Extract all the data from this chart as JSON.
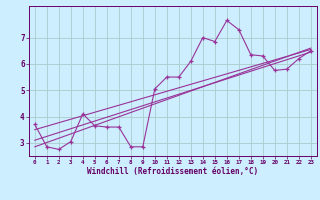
{
  "xlabel": "Windchill (Refroidissement éolien,°C)",
  "bg_color": "#cceeff",
  "grid_color": "#aacccc",
  "line_color": "#993399",
  "x_data": [
    0,
    1,
    2,
    3,
    4,
    5,
    6,
    7,
    8,
    9,
    10,
    11,
    12,
    13,
    14,
    15,
    16,
    17,
    18,
    19,
    20,
    21,
    22,
    23
  ],
  "y_data": [
    3.7,
    2.85,
    2.75,
    3.05,
    4.1,
    3.65,
    3.6,
    3.6,
    2.85,
    2.85,
    5.05,
    5.5,
    5.5,
    6.1,
    7.0,
    6.85,
    7.65,
    7.3,
    6.35,
    6.3,
    5.75,
    5.8,
    6.2,
    6.5
  ],
  "trend1_x": [
    0,
    23
  ],
  "trend1_y": [
    3.1,
    6.45
  ],
  "trend2_x": [
    0,
    23
  ],
  "trend2_y": [
    2.85,
    6.6
  ],
  "trend3_x": [
    0,
    23
  ],
  "trend3_y": [
    3.5,
    6.55
  ],
  "xlim": [
    -0.5,
    23.5
  ],
  "ylim": [
    2.5,
    8.2
  ],
  "yticks": [
    3,
    4,
    5,
    6,
    7
  ],
  "xticks": [
    0,
    1,
    2,
    3,
    4,
    5,
    6,
    7,
    8,
    9,
    10,
    11,
    12,
    13,
    14,
    15,
    16,
    17,
    18,
    19,
    20,
    21,
    22,
    23
  ]
}
